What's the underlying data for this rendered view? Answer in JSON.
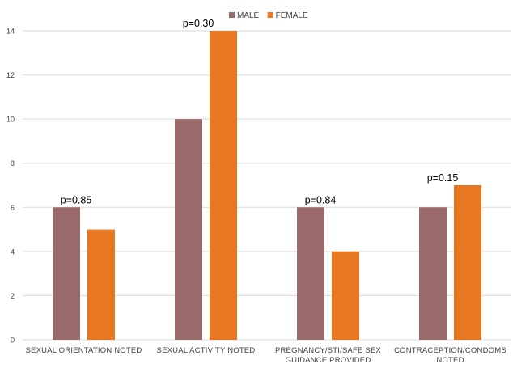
{
  "chart_data": {
    "type": "bar",
    "categories": [
      [
        "SEXUAL ORIENTATION NOTED"
      ],
      [
        "SEXUAL ACTIVITY NOTED"
      ],
      [
        "PREGNANCY/STI/SAFE SEX",
        "GUIDANCE PROVIDED"
      ],
      [
        "CONTRACEPTION/CONDOMS",
        "NOTED"
      ]
    ],
    "series": [
      {
        "name": "MALE",
        "color": "#9b6b6b",
        "values": [
          6,
          10,
          6,
          6
        ]
      },
      {
        "name": "FEMALE",
        "color": "#e87722",
        "values": [
          5,
          14,
          4,
          7
        ]
      }
    ],
    "annotations": [
      "p=0.85",
      "p=0.30",
      "p=0.84",
      "p=0.15"
    ],
    "y_ticks": [
      "0",
      "2",
      "4",
      "6",
      "8",
      "10",
      "12",
      "14"
    ],
    "ylim": [
      0,
      14
    ],
    "grid": true,
    "legend_position": "top"
  }
}
